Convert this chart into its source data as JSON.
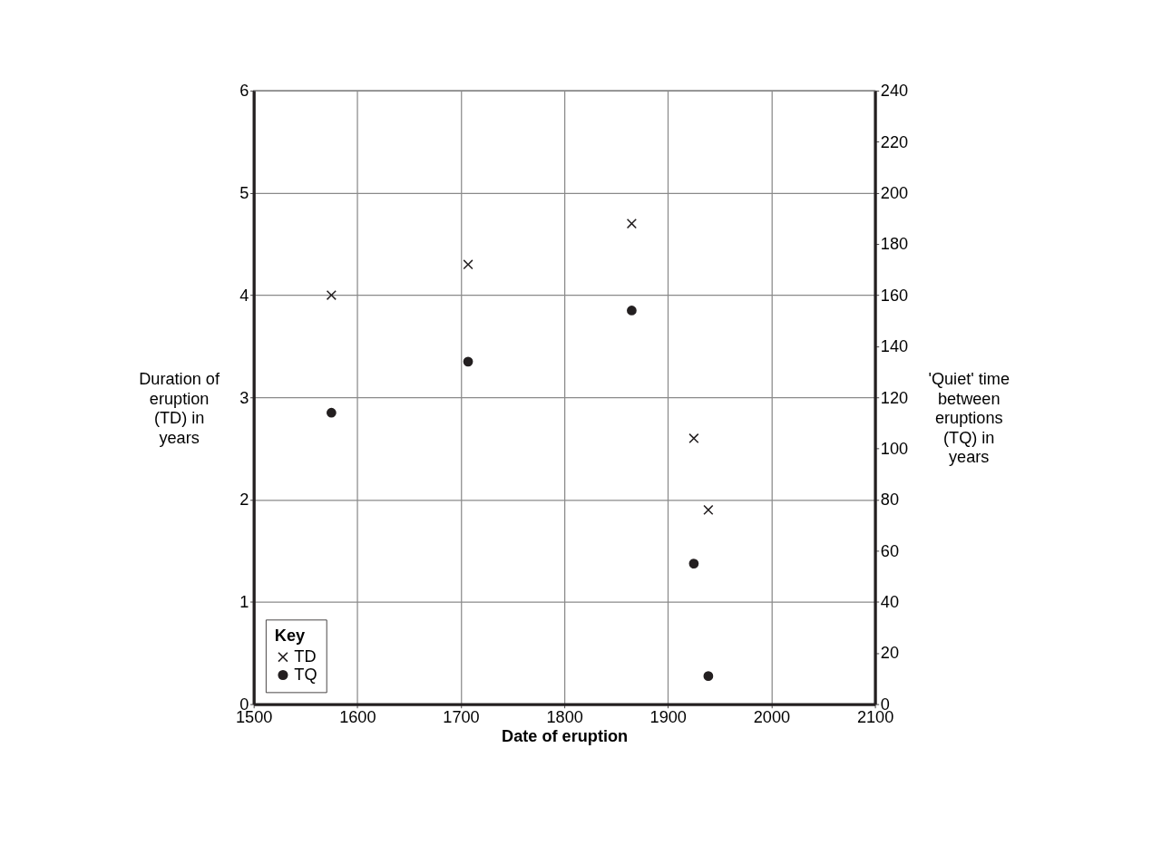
{
  "chart_data": {
    "type": "scatter",
    "xlabel": "Date of eruption",
    "ylabel": "Duration of\neruption\n(TD) in\nyears",
    "y2label": "'Quiet' time\nbetween\neruptions\n(TQ) in\nyears",
    "legend_title": "Key",
    "series": [
      {
        "name": "TD",
        "color": "#231f20",
        "marker": "cross",
        "x": [
          1575,
          1707,
          1865,
          1925,
          1939
        ],
        "values": [
          4.0,
          4.3,
          4.7,
          2.6,
          1.9
        ]
      },
      {
        "name": "TQ",
        "color": "#231f20",
        "marker": "circle",
        "axis": "y2",
        "x": [
          1575,
          1707,
          1865,
          1925,
          1939
        ],
        "values": [
          114,
          134,
          154,
          55,
          11
        ]
      }
    ],
    "xlim": [
      1500,
      2100
    ],
    "xticks": [
      1500,
      1600,
      1700,
      1800,
      1900,
      2000,
      2100
    ],
    "ylim": [
      0,
      6
    ],
    "yticks": [
      0,
      1,
      2,
      3,
      4,
      5,
      6
    ],
    "y2lim": [
      0,
      240
    ],
    "y2ticks": [
      0,
      20,
      40,
      60,
      80,
      100,
      120,
      140,
      160,
      180,
      200,
      220,
      240
    ],
    "grid": true,
    "legend": "bottom left"
  }
}
